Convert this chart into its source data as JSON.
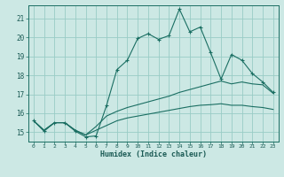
{
  "xlabel": "Humidex (Indice chaleur)",
  "bg_color": "#cce8e4",
  "line_color": "#1a6e62",
  "grid_color": "#99ccc6",
  "x_ticks": [
    0,
    1,
    2,
    3,
    4,
    5,
    6,
    7,
    8,
    9,
    10,
    11,
    12,
    13,
    14,
    15,
    16,
    17,
    18,
    19,
    20,
    21,
    22,
    23
  ],
  "y_ticks": [
    15,
    16,
    17,
    18,
    19,
    20,
    21
  ],
  "ylim": [
    14.5,
    21.7
  ],
  "xlim": [
    -0.5,
    23.5
  ],
  "curve1_x": [
    0,
    1,
    2,
    3,
    4,
    5,
    6,
    7,
    8,
    9,
    10,
    11,
    12,
    13,
    14,
    15,
    16,
    17,
    18,
    19,
    20,
    21,
    22,
    23
  ],
  "curve1_y": [
    15.6,
    15.05,
    15.5,
    15.5,
    15.05,
    14.75,
    14.8,
    16.4,
    18.3,
    18.8,
    19.95,
    20.2,
    19.9,
    20.1,
    21.5,
    20.3,
    20.55,
    19.2,
    17.8,
    19.1,
    18.8,
    18.1,
    17.65,
    17.1
  ],
  "curve2_x": [
    0,
    1,
    2,
    3,
    4,
    5,
    6,
    7,
    8,
    9,
    10,
    11,
    12,
    13,
    14,
    15,
    16,
    17,
    18,
    19,
    20,
    21,
    22,
    23
  ],
  "curve2_y": [
    15.6,
    15.1,
    15.5,
    15.5,
    15.1,
    14.85,
    15.3,
    15.85,
    16.1,
    16.3,
    16.45,
    16.6,
    16.75,
    16.9,
    17.1,
    17.25,
    17.4,
    17.55,
    17.7,
    17.55,
    17.65,
    17.55,
    17.5,
    17.05
  ],
  "curve3_x": [
    0,
    1,
    2,
    3,
    4,
    5,
    6,
    7,
    8,
    9,
    10,
    11,
    12,
    13,
    14,
    15,
    16,
    17,
    18,
    19,
    20,
    21,
    22,
    23
  ],
  "curve3_y": [
    15.6,
    15.1,
    15.5,
    15.5,
    15.1,
    14.85,
    15.1,
    15.35,
    15.6,
    15.75,
    15.85,
    15.95,
    16.05,
    16.15,
    16.25,
    16.35,
    16.42,
    16.45,
    16.5,
    16.42,
    16.42,
    16.35,
    16.3,
    16.2
  ]
}
